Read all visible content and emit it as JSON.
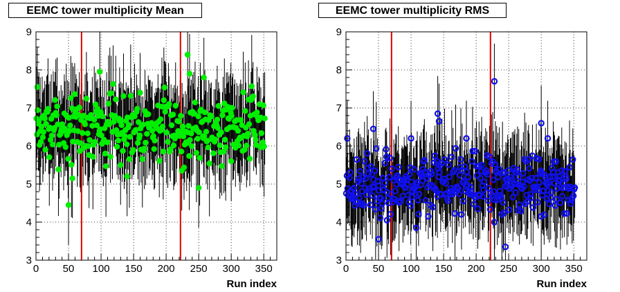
{
  "chart_data": [
    {
      "type": "scatter",
      "title": "EEMC tower multiplicity Mean",
      "xlabel": "Run index",
      "ylabel": "",
      "xlim": [
        0,
        370
      ],
      "ylim": [
        3,
        9
      ],
      "xticks": [
        0,
        50,
        100,
        150,
        200,
        250,
        300,
        350
      ],
      "yticks": [
        3,
        4,
        5,
        6,
        7,
        8,
        9
      ],
      "grid": true,
      "marker_color": "#00ee00",
      "error_bar_color": "#000000",
      "vertical_lines": [
        70,
        222
      ],
      "vertical_line_color": "#dd0000",
      "n_points": 352,
      "seed": 7,
      "center": 6.5,
      "spread": 0.42,
      "err": 0.95,
      "outliers": [
        [
          50,
          4.45
        ],
        [
          56,
          5.15
        ],
        [
          2,
          7.55
        ],
        [
          98,
          7.95
        ],
        [
          233,
          8.4
        ],
        [
          236,
          7.9
        ],
        [
          250,
          4.9
        ],
        [
          224,
          5.35
        ],
        [
          140,
          5.2
        ],
        [
          130,
          5.5
        ],
        [
          160,
          7.4
        ],
        [
          258,
          7.8
        ],
        [
          300,
          5.6
        ]
      ]
    },
    {
      "type": "scatter",
      "title": "EEMC tower multiplicity RMS",
      "xlabel": "Run index",
      "ylabel": "",
      "xlim": [
        0,
        370
      ],
      "ylim": [
        3,
        9
      ],
      "xticks": [
        0,
        50,
        100,
        150,
        200,
        250,
        300,
        350
      ],
      "yticks": [
        3,
        4,
        5,
        6,
        7,
        8,
        9
      ],
      "grid": true,
      "marker_color": "#1010ee",
      "error_bar_color": "#000000",
      "vertical_lines": [
        70,
        222
      ],
      "vertical_line_color": "#dd0000",
      "n_points": 352,
      "seed": 23,
      "center": 5.0,
      "spread": 0.38,
      "err": 0.9,
      "outliers": [
        [
          2,
          6.2
        ],
        [
          42,
          6.45
        ],
        [
          50,
          3.55
        ],
        [
          63,
          4.05
        ],
        [
          108,
          3.85
        ],
        [
          141,
          6.85
        ],
        [
          143,
          6.65
        ],
        [
          228,
          7.7
        ],
        [
          228,
          4.0
        ],
        [
          245,
          3.35
        ],
        [
          300,
          6.6
        ],
        [
          300,
          4.15
        ],
        [
          100,
          6.2
        ],
        [
          185,
          6.2
        ],
        [
          310,
          6.2
        ]
      ]
    }
  ]
}
